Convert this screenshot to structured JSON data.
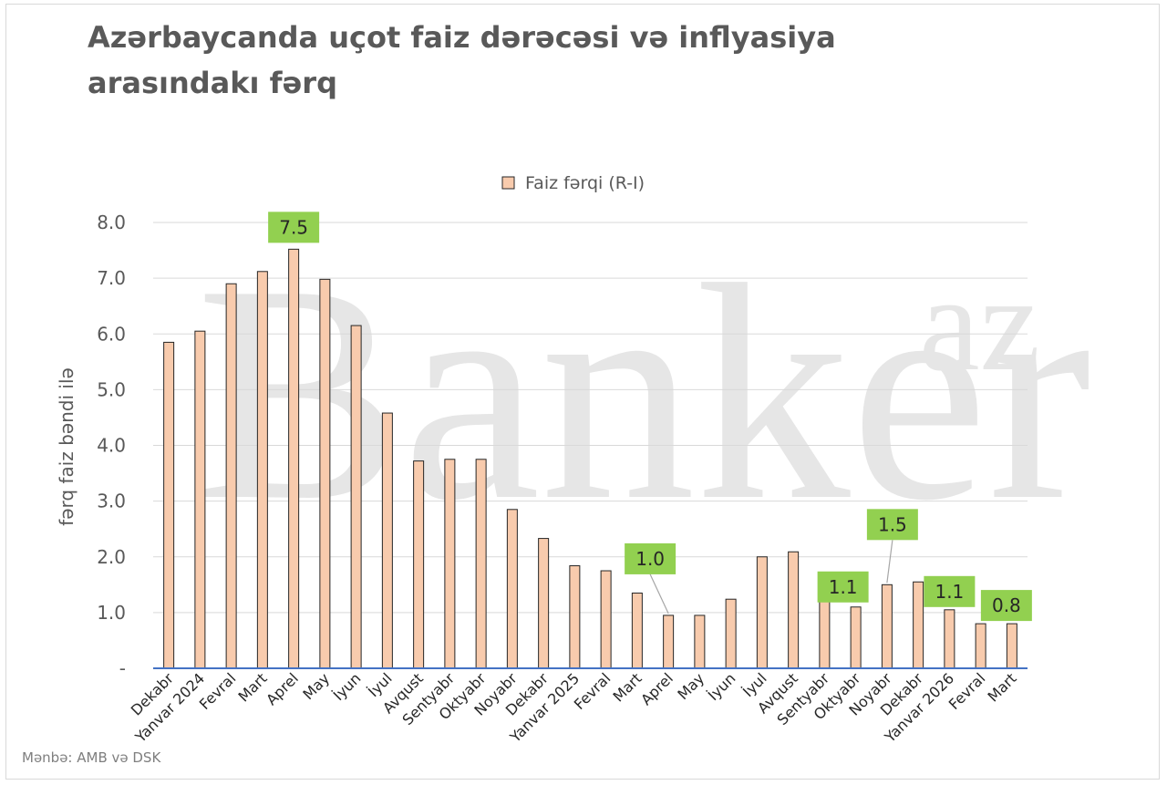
{
  "chart_data": {
    "type": "bar",
    "title": "Azərbaycanda uçot faiz dərəcəsi və inflyasiya arasındakı fərq",
    "ylabel": "fərq faiz bəndi ilə",
    "xlabel": "",
    "ylim": [
      0,
      8
    ],
    "y_ticks": [
      "-",
      "1.0",
      "2.0",
      "3.0",
      "4.0",
      "5.0",
      "6.0",
      "7.0",
      "8.0"
    ],
    "legend": {
      "position": "top",
      "label": "Faiz fərqi (R-I)"
    },
    "grid": true,
    "categories": [
      "Dekabr",
      "Yanvar 2024",
      "Fevral",
      "Mart",
      "Aprel",
      "May",
      "İyun",
      "İyul",
      "Avqust",
      "Sentyabr",
      "Oktyabr",
      "Noyabr",
      "Dekabr",
      "Yanvar 2025",
      "Fevral",
      "Mart",
      "Aprel",
      "May",
      "İyun",
      "İyul",
      "Avqust",
      "Sentyabr",
      "Oktyabr",
      "Noyabr",
      "Dekabr",
      "Yanvar 2026",
      "Fevral",
      "Mart"
    ],
    "series": [
      {
        "name": "Faiz fərqi (R-I)",
        "values": [
          5.85,
          6.05,
          6.9,
          7.12,
          7.52,
          6.98,
          6.15,
          4.58,
          3.72,
          3.75,
          3.75,
          2.85,
          2.33,
          1.84,
          1.75,
          1.35,
          0.95,
          0.95,
          1.24,
          2.0,
          2.09,
          1.28,
          1.1,
          1.5,
          1.55,
          1.05,
          0.8,
          0.8
        ]
      }
    ],
    "annotations": [
      {
        "index": 4,
        "text": "7.5"
      },
      {
        "index": 16,
        "text": "1.0"
      },
      {
        "index": 22,
        "text": "1.1"
      },
      {
        "index": 23,
        "text": "1.5"
      },
      {
        "index": 25,
        "text": "1.1"
      },
      {
        "index": 27,
        "text": "0.8"
      }
    ],
    "colors": {
      "bar_fill": "#f8cbad",
      "bar_stroke": "#262626",
      "label_bg": "#92d050",
      "axis_line": "#4472c4",
      "grid": "#d9d9d9",
      "text": "#595959"
    }
  },
  "watermark": "Banker.az",
  "source": "Mənbə: AMB və DSK"
}
